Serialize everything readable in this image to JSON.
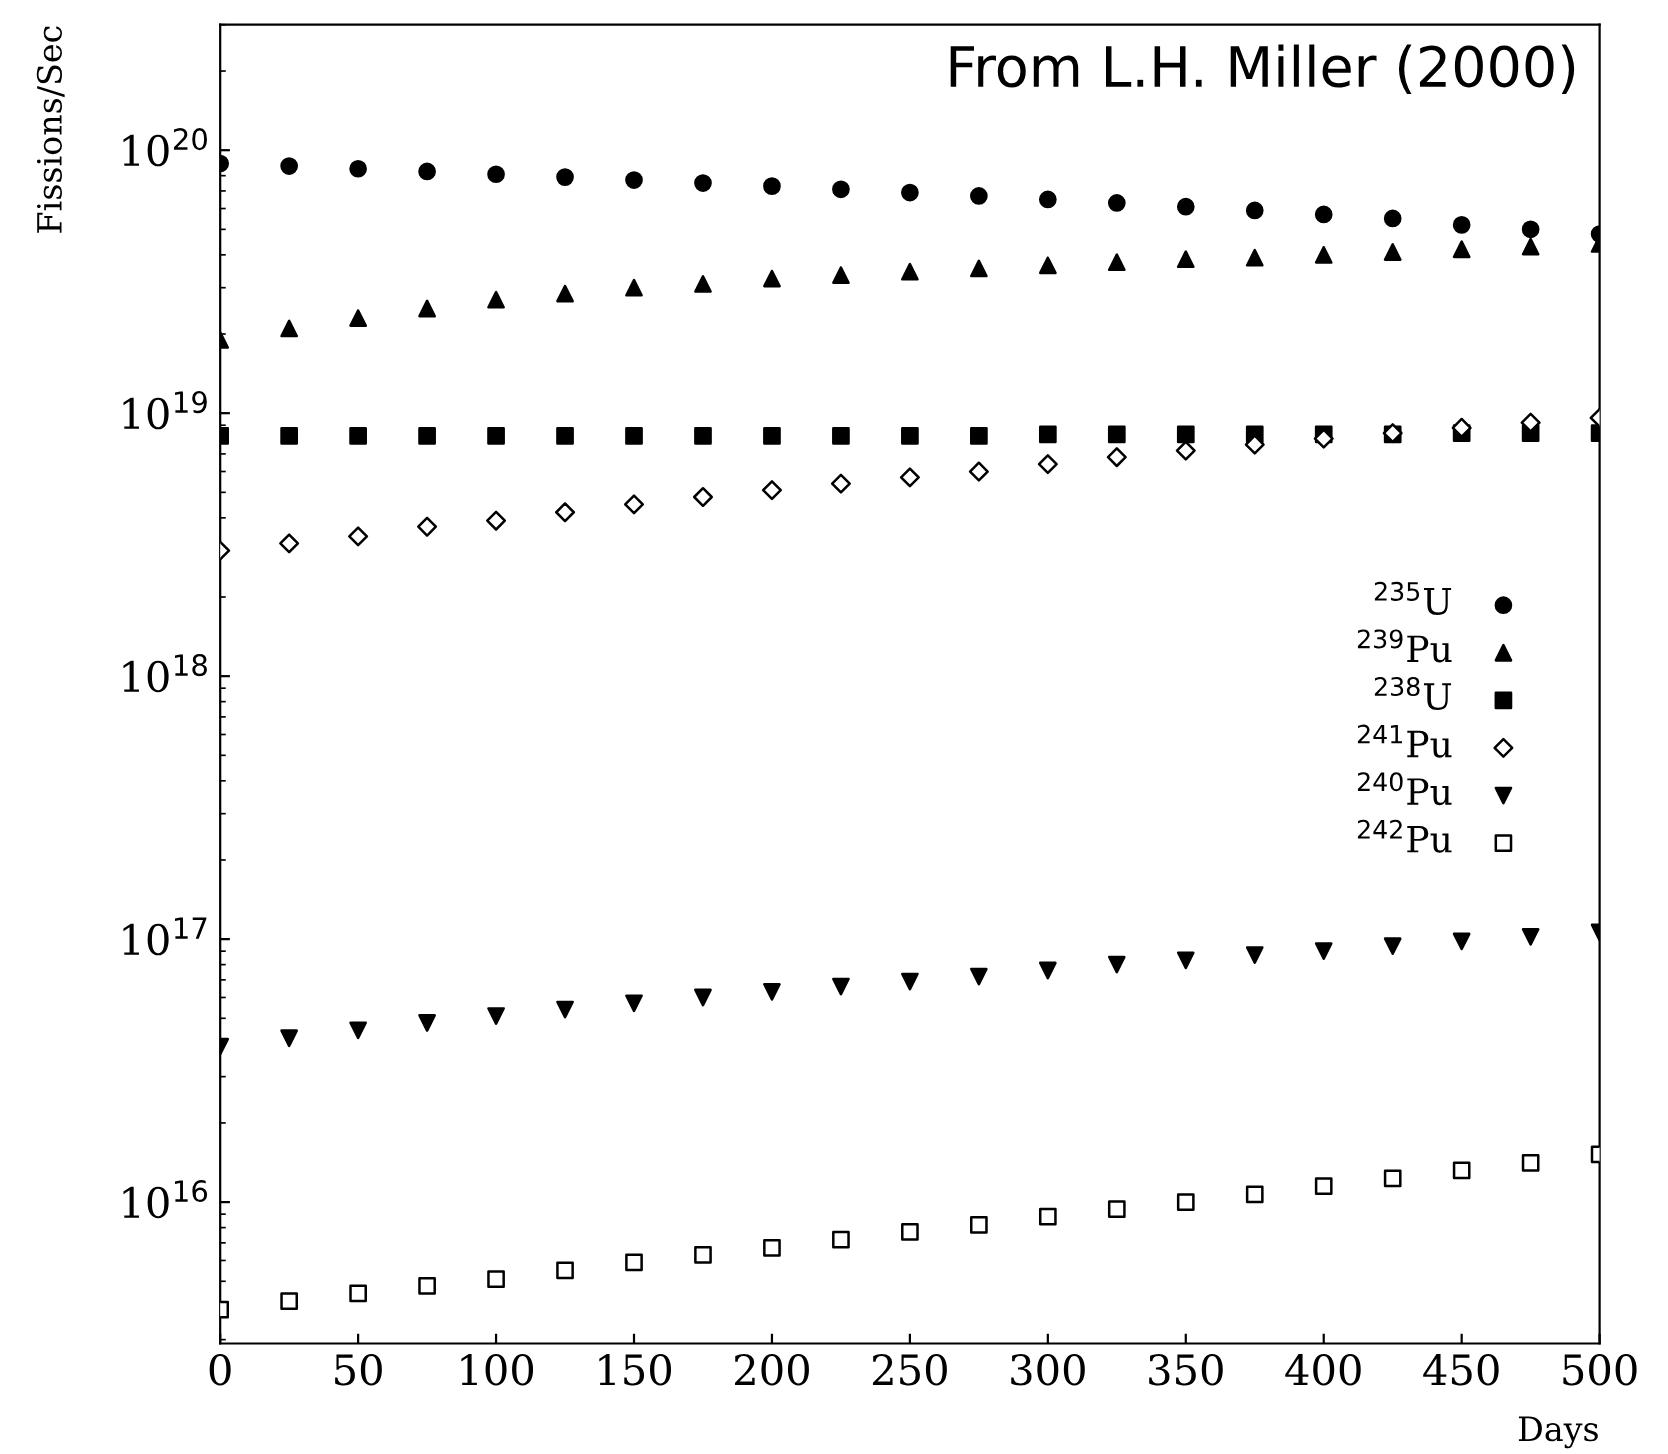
{
  "chart_data": {
    "type": "scatter",
    "xlabel": "Days",
    "ylabel": "Fissions/Sec",
    "annotations": [
      "From L.H. Miller (2000)"
    ],
    "log": "y",
    "grid": false,
    "legend": "right",
    "xlim": [
      0,
      500
    ],
    "xticks": [
      0,
      50,
      100,
      150,
      200,
      250,
      300,
      350,
      400,
      450,
      500
    ],
    "ylim": [
      2900000000000000.0,
      3e+20
    ],
    "yticks": [
      {
        "value": 1e+16,
        "label": "10$^{16}$"
      },
      {
        "value": 1e+17,
        "label": "10$^{17}$"
      },
      {
        "value": 1e+18,
        "label": "10$^{18}$"
      },
      {
        "value": 1e+19,
        "label": "10$^{19}$"
      },
      {
        "value": 1e+20,
        "label": "10$^{20}$"
      }
    ],
    "x": [
      0,
      25,
      50,
      75,
      100,
      125,
      150,
      175,
      200,
      225,
      250,
      275,
      300,
      325,
      350,
      375,
      400,
      425,
      450,
      475,
      500
    ],
    "series": [
      {
        "name": "$^{235}$U",
        "color": "#000000",
        "marker": "circle",
        "values": [
          8.9e+19,
          8.7e+19,
          8.5e+19,
          8.3e+19,
          8.1e+19,
          7.9e+19,
          7.7e+19,
          7.5e+19,
          7.3e+19,
          7.1e+19,
          6.9e+19,
          6.7e+19,
          6.5e+19,
          6.3e+19,
          6.1e+19,
          5.9e+19,
          5.7e+19,
          5.5e+19,
          5.2e+19,
          5e+19,
          4.8e+19
        ]
      },
      {
        "name": "$^{239}$Pu",
        "color": "#000000",
        "marker": "triangle",
        "values": [
          1.9e+19,
          2.1e+19,
          2.3e+19,
          2.5e+19,
          2.7e+19,
          2.85e+19,
          3e+19,
          3.1e+19,
          3.25e+19,
          3.35e+19,
          3.45e+19,
          3.55e+19,
          3.65e+19,
          3.75e+19,
          3.85e+19,
          3.9e+19,
          4e+19,
          4.1e+19,
          4.2e+19,
          4.3e+19,
          4.4e+19
        ]
      },
      {
        "name": "$^{238}$U",
        "color": "#000000",
        "marker": "square",
        "values": [
          8.2e+18,
          8.2e+18,
          8.2e+18,
          8.2e+18,
          8.2e+18,
          8.2e+18,
          8.2e+18,
          8.2e+18,
          8.2e+18,
          8.2e+18,
          8.2e+18,
          8.2e+18,
          8.3e+18,
          8.3e+18,
          8.3e+18,
          8.3e+18,
          8.3e+18,
          8.3e+18,
          8.4e+18,
          8.4e+18,
          8.4e+18
        ]
      },
      {
        "name": "$^{241}$Pu",
        "color": "#ffffff",
        "marker": "diamond",
        "values": [
          3e+18,
          3.2e+18,
          3.4e+18,
          3.7e+18,
          3.9e+18,
          4.2e+18,
          4.5e+18,
          4.8e+18,
          5.1e+18,
          5.4e+18,
          5.7e+18,
          6e+18,
          6.4e+18,
          6.8e+18,
          7.2e+18,
          7.6e+18,
          8e+18,
          8.4e+18,
          8.8e+18,
          9.2e+18,
          9.6e+18
        ]
      },
      {
        "name": "$^{240}$Pu",
        "color": "#000000",
        "marker": "triangle_down",
        "values": [
          3.9e+16,
          4.2e+16,
          4.5e+16,
          4.8e+16,
          5.1e+16,
          5.4e+16,
          5.7e+16,
          6e+16,
          6.3e+16,
          6.6e+16,
          6.9e+16,
          7.2e+16,
          7.6e+16,
          8e+16,
          8.3e+16,
          8.7e+16,
          9e+16,
          9.4e+16,
          9.8e+16,
          1.02e+17,
          1.06e+17
        ]
      },
      {
        "name": "$^{242}$Pu",
        "color": "#ffffff",
        "marker": "square",
        "values": [
          3900000000000000.0,
          4200000000000000.0,
          4500000000000000.0,
          4800000000000000.0,
          5100000000000000.0,
          5500000000000000.0,
          5900000000000000.0,
          6300000000000000.0,
          6700000000000000.0,
          7200000000000000.0,
          7700000000000000.0,
          8200000000000000.0,
          8800000000000000.0,
          9400000000000000.0,
          1e+16,
          1.07e+16,
          1.15e+16,
          1.23e+16,
          1.32e+16,
          1.41e+16,
          1.52e+16
        ]
      }
    ]
  }
}
